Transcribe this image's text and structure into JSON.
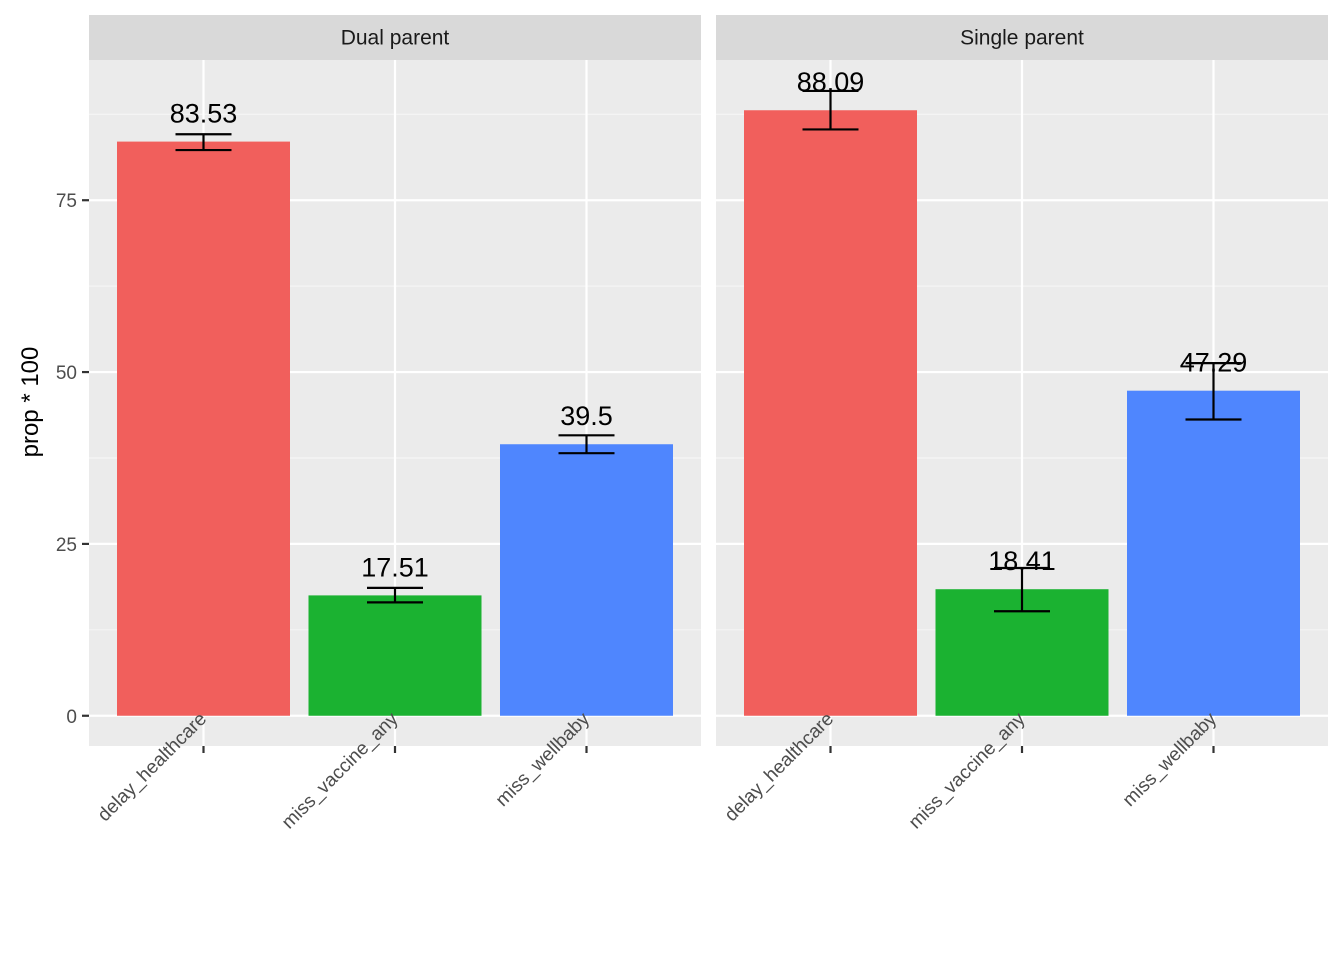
{
  "chart_data": {
    "type": "bar",
    "ylabel": "prop * 100",
    "xlabel": "",
    "ylim": [
      -4.4,
      95.4
    ],
    "yticks": [
      0,
      25,
      50,
      75
    ],
    "grid": true,
    "legend": "none",
    "colors": [
      "#F15F5C",
      "#1BB231",
      "#4F86FE"
    ],
    "categories": [
      "delay_healthcare",
      "miss_vaccine_any",
      "miss_wellbaby"
    ],
    "panels": [
      {
        "title": "Dual parent",
        "values": [
          83.53,
          17.51,
          39.5
        ],
        "labels": [
          "83.53",
          "17.51",
          "39.5"
        ],
        "error_low": [
          82.3,
          16.5,
          38.2
        ],
        "error_high": [
          84.6,
          18.6,
          40.8
        ]
      },
      {
        "title": "Single parent",
        "values": [
          88.09,
          18.41,
          47.29
        ],
        "labels": [
          "88.09",
          "18.41",
          "47.29"
        ],
        "error_low": [
          85.3,
          15.2,
          43.1
        ],
        "error_high": [
          90.9,
          21.5,
          51.3
        ]
      }
    ]
  }
}
